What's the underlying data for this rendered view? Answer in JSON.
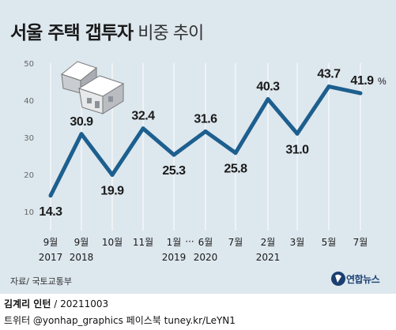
{
  "title": "서울 주택 갭투자",
  "subtitle": "비중 추이",
  "chart_data": {
    "type": "line",
    "title": "서울 주택 갭투자 비중 추이",
    "unit": "%",
    "ylim": [
      10,
      50
    ],
    "yticks": [
      "10",
      "20",
      "30",
      "40",
      "50"
    ],
    "grid": "vertical",
    "x_month_labels": [
      "9월",
      "9월",
      "10월",
      "11월",
      "1월",
      "6월",
      "7월",
      "2월",
      "3월",
      "5월",
      "7월"
    ],
    "x_year_labels": [
      "2017",
      "2018",
      "2019",
      "2020",
      "2021"
    ],
    "x_ellipsis": "···",
    "series": [
      {
        "color": "#1d5f8e",
        "values": [
          14.3,
          30.9,
          19.9,
          32.4,
          25.3,
          31.6,
          25.8,
          40.3,
          31.0,
          43.7,
          41.9
        ],
        "labels": [
          "14.3",
          "30.9",
          "19.9",
          "32.4",
          "25.3",
          "31.6",
          "25.8",
          "40.3",
          "31.0",
          "43.7",
          "41.9"
        ]
      }
    ]
  },
  "source": "자료/ 국토교통부",
  "logo": "연합뉴스",
  "credit_name": "김계리 인턴",
  "credit_date": " / 20211003",
  "credit_social": "트위터 @yonhap_graphics  페이스북 tuney.kr/LeYN1",
  "colors": {
    "background": "#dde7ee",
    "line": "#1d5f8e",
    "logo": "#1a3f70"
  },
  "icons": [
    "house-illustration",
    "yonhap-logo-icon"
  ]
}
